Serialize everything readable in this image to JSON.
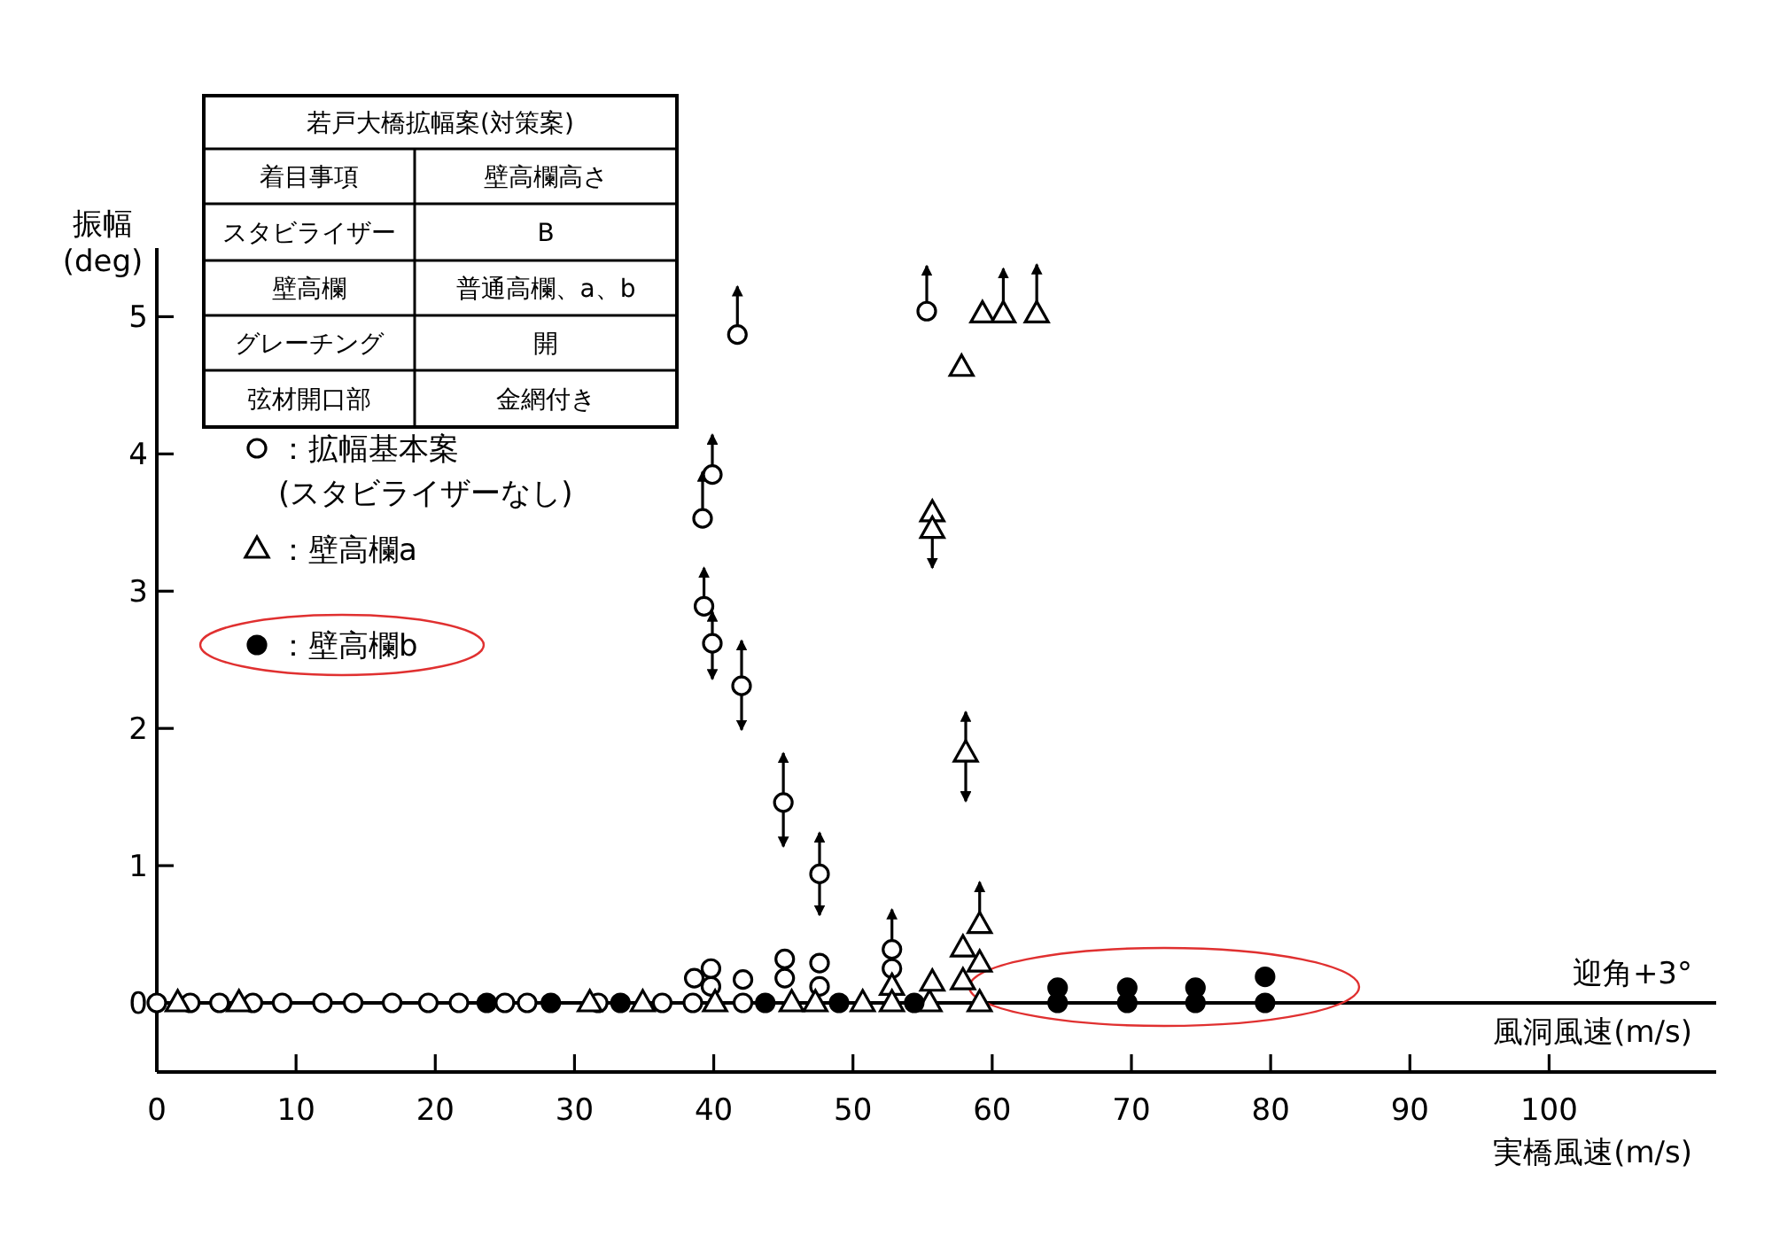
{
  "chart_data": {
    "type": "scatter",
    "ylabel": "振幅\n(deg)",
    "xlabel": "実橋風速(m/s)",
    "xlim": [
      0,
      112
    ],
    "ylim": [
      0,
      5.5
    ],
    "xticks": [
      0,
      10,
      20,
      30,
      40,
      50,
      60,
      70,
      80,
      90,
      100
    ],
    "yticks": [
      0,
      1,
      2,
      3,
      4,
      5
    ],
    "legend": "top left",
    "annotations": [
      "若戸大橋拡幅案(対策案)",
      "着目事項",
      "壁高欄高さ",
      "スタビライザー",
      "B",
      "壁高欄",
      "普通高欄、a、b",
      "グレーチング",
      "開",
      "弦材開口部",
      "金網付き",
      "迎角+3°",
      "風洞風速(m/s)"
    ],
    "series": [
      {
        "name": "：拡幅基本案\n(スタビライザーなし)",
        "color": "#ffffff",
        "marker": "circle",
        "x": [
          0,
          2.4,
          4.5,
          6.9,
          9.0,
          11.9,
          14.1,
          16.9,
          19.5,
          21.7,
          25.0,
          26.6,
          31.7,
          36.3,
          38.5,
          38.6,
          39.2,
          39.3,
          39.8,
          39.8,
          39.9,
          39.9,
          41.7,
          42.0,
          42.1,
          42.1,
          45.0,
          45.1,
          45.1,
          47.6,
          47.6,
          47.6,
          52.8,
          52.8,
          55.3
        ],
        "values": [
          0,
          0,
          0,
          0,
          0,
          0,
          0,
          0,
          0,
          0,
          0,
          0,
          0,
          0,
          0,
          0.18,
          3.53,
          2.89,
          0.25,
          0.12,
          3.85,
          2.62,
          4.87,
          2.31,
          0.17,
          0,
          1.46,
          0.32,
          0.18,
          0.94,
          0.29,
          0.12,
          0.39,
          0.25,
          5.04
        ],
        "errors": [
          null,
          null,
          null,
          null,
          null,
          null,
          null,
          null,
          null,
          null,
          null,
          null,
          null,
          null,
          null,
          null,
          [
            3.53,
            3.87
          ],
          [
            2.89,
            3.17
          ],
          null,
          null,
          [
            3.85,
            4.14
          ],
          [
            2.36,
            2.85
          ],
          [
            4.87,
            5.22
          ],
          [
            1.99,
            2.64
          ],
          null,
          null,
          [
            1.14,
            1.82
          ],
          null,
          null,
          [
            0.64,
            1.24
          ],
          null,
          null,
          [
            0.39,
            0.68
          ],
          null,
          [
            5.04,
            5.37
          ]
        ]
      },
      {
        "name": "：壁高欄a",
        "color": "#ffffff",
        "marker": "triangle",
        "x": [
          1.5,
          5.9,
          31.1,
          34.9,
          40.1,
          45.6,
          47.3,
          50.7,
          52.8,
          52.8,
          55.5,
          55.7,
          55.7,
          55.7,
          57.8,
          57.9,
          57.9,
          58.1,
          59.1,
          59.1,
          59.1,
          59.3,
          60.8,
          63.2
        ],
        "values": [
          0,
          0,
          0,
          0,
          0,
          0,
          0,
          0,
          0.12,
          0,
          0,
          0.15,
          3.57,
          3.45,
          4.63,
          0.4,
          0.16,
          1.82,
          0.57,
          0.29,
          0,
          5.02,
          5.02,
          5.02
        ],
        "errors": [
          null,
          null,
          null,
          null,
          null,
          null,
          null,
          null,
          null,
          null,
          null,
          null,
          null,
          [
            3.17,
            3.45
          ],
          null,
          null,
          null,
          [
            1.47,
            2.12
          ],
          [
            0.57,
            0.88
          ],
          null,
          null,
          null,
          [
            5.02,
            5.35
          ],
          [
            5.02,
            5.38
          ]
        ]
      },
      {
        "name": "：壁高欄b",
        "color": "#000000",
        "marker": "circle",
        "x": [
          23.7,
          28.3,
          33.3,
          43.7,
          49.0,
          54.4,
          64.7,
          64.7,
          69.7,
          69.7,
          74.6,
          74.6,
          79.6,
          79.6
        ],
        "values": [
          0,
          0,
          0,
          0,
          0,
          0,
          0.11,
          0,
          0.11,
          0,
          0.11,
          0,
          0.19,
          0
        ]
      }
    ]
  }
}
